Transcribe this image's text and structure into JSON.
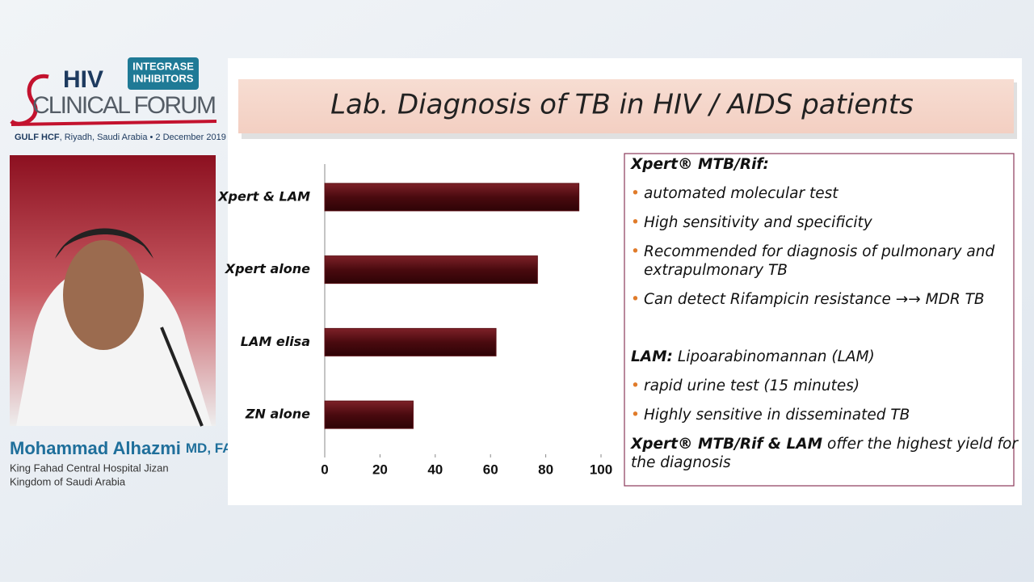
{
  "branding": {
    "logo_hiv": "HIV",
    "logo_forum": "CLINICAL FORUM",
    "badge": [
      "INTEGRASE",
      "INHIBITORS"
    ],
    "event_name": "GULF HCF",
    "event_details": ", Riyadh, Saudi Arabia • 2 December 2019"
  },
  "speaker": {
    "name": "Mohammad Alhazmi",
    "credentials": "MD, FACP",
    "affiliation": [
      "King Fahad Central Hospital Jizan",
      "Kingdom of Saudi Arabia"
    ]
  },
  "slide": {
    "title": "Lab. Diagnosis of TB in HIV / AIDS patients",
    "notes": {
      "xpert_heading": "Xpert® MTB/Rif:",
      "xpert_points": [
        [
          "automated molecular test"
        ],
        [
          "High sensitivity and specificity"
        ],
        [
          "Recommended for diagnosis of pulmonary and",
          "extrapulmonary TB"
        ],
        [
          "Can detect Rifampicin resistance →→ MDR TB"
        ]
      ],
      "lam_heading": "LAM:",
      "lam_definition": "Lipoarabinomannan (LAM)",
      "lam_points": [
        [
          "rapid urine test (15 minutes)"
        ],
        [
          "Highly sensitive in disseminated TB"
        ]
      ],
      "conclusion_bold": "Xpert® MTB/Rif & LAM",
      "conclusion_rest": [
        "offer the highest yield for",
        "the diagnosis"
      ]
    }
  },
  "chart_data": {
    "type": "bar",
    "orientation": "horizontal",
    "categories": [
      "Xpert & LAM",
      "Xpert alone",
      "LAM elisa",
      "ZN alone"
    ],
    "values": [
      92,
      77,
      62,
      32
    ],
    "color": "#5c1016",
    "xlim": [
      0,
      100
    ],
    "xticks": [
      0,
      20,
      40,
      60,
      80,
      100
    ]
  }
}
